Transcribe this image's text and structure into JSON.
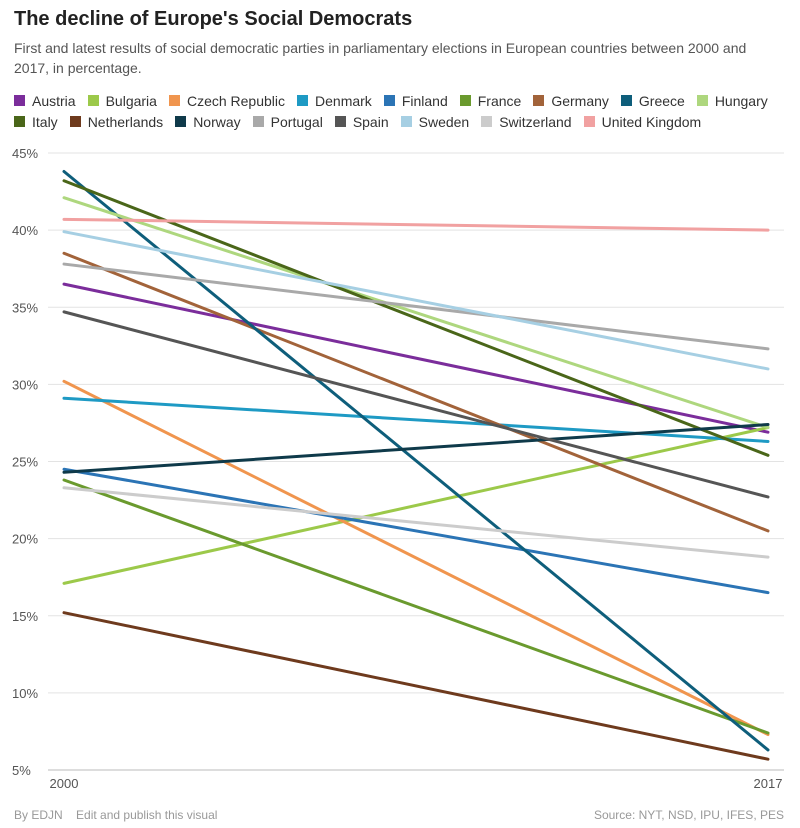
{
  "header": {
    "title": "The decline of Europe's Social Democrats",
    "subtitle": "First and latest results of social democratic parties in parliamentary elections in European countries between 2000 and 2017, in percentage."
  },
  "footer": {
    "credit": "By EDJN",
    "edit_link": "Edit and publish this visual",
    "source": "Source: NYT, NSD, IPU, IFES, PES"
  },
  "chart_data": {
    "type": "line",
    "x": [
      2000,
      2017
    ],
    "x_tick_labels": [
      "2000",
      "2017"
    ],
    "ylim": [
      5,
      45
    ],
    "y_ticks": [
      5,
      10,
      15,
      20,
      25,
      30,
      35,
      40,
      45
    ],
    "y_tick_labels": [
      "5%",
      "10%",
      "15%",
      "20%",
      "25%",
      "30%",
      "35%",
      "40%",
      "45%"
    ],
    "grid": true,
    "legend_position": "top",
    "series": [
      {
        "name": "Austria",
        "color": "#7b2d9b",
        "values": [
          36.5,
          26.9
        ]
      },
      {
        "name": "Bulgaria",
        "color": "#9cc94a",
        "values": [
          17.1,
          27.2
        ]
      },
      {
        "name": "Czech Republic",
        "color": "#f0954e",
        "values": [
          30.2,
          7.3
        ]
      },
      {
        "name": "Denmark",
        "color": "#1e9ac4",
        "values": [
          29.1,
          26.3
        ]
      },
      {
        "name": "Finland",
        "color": "#2b74b5",
        "values": [
          24.5,
          16.5
        ]
      },
      {
        "name": "France",
        "color": "#6a9a2e",
        "values": [
          23.8,
          7.4
        ]
      },
      {
        "name": "Germany",
        "color": "#a2633a",
        "values": [
          38.5,
          20.5
        ]
      },
      {
        "name": "Greece",
        "color": "#0e5e7b",
        "values": [
          43.8,
          6.3
        ]
      },
      {
        "name": "Hungary",
        "color": "#aed77e",
        "values": [
          42.1,
          27.2
        ]
      },
      {
        "name": "Italy",
        "color": "#4a6619",
        "values": [
          43.2,
          25.4
        ]
      },
      {
        "name": "Netherlands",
        "color": "#6e3a1d",
        "values": [
          15.2,
          5.7
        ]
      },
      {
        "name": "Norway",
        "color": "#0f3a4a",
        "values": [
          24.3,
          27.4
        ]
      },
      {
        "name": "Portugal",
        "color": "#a9a9a9",
        "values": [
          37.8,
          32.3
        ]
      },
      {
        "name": "Spain",
        "color": "#555555",
        "values": [
          34.7,
          22.7
        ]
      },
      {
        "name": "Sweden",
        "color": "#a6cfe3",
        "values": [
          39.9,
          31.0
        ]
      },
      {
        "name": "Switzerland",
        "color": "#cccccc",
        "values": [
          23.3,
          18.8
        ]
      },
      {
        "name": "United Kingdom",
        "color": "#f1a1a1",
        "values": [
          40.7,
          40.0
        ]
      }
    ]
  }
}
